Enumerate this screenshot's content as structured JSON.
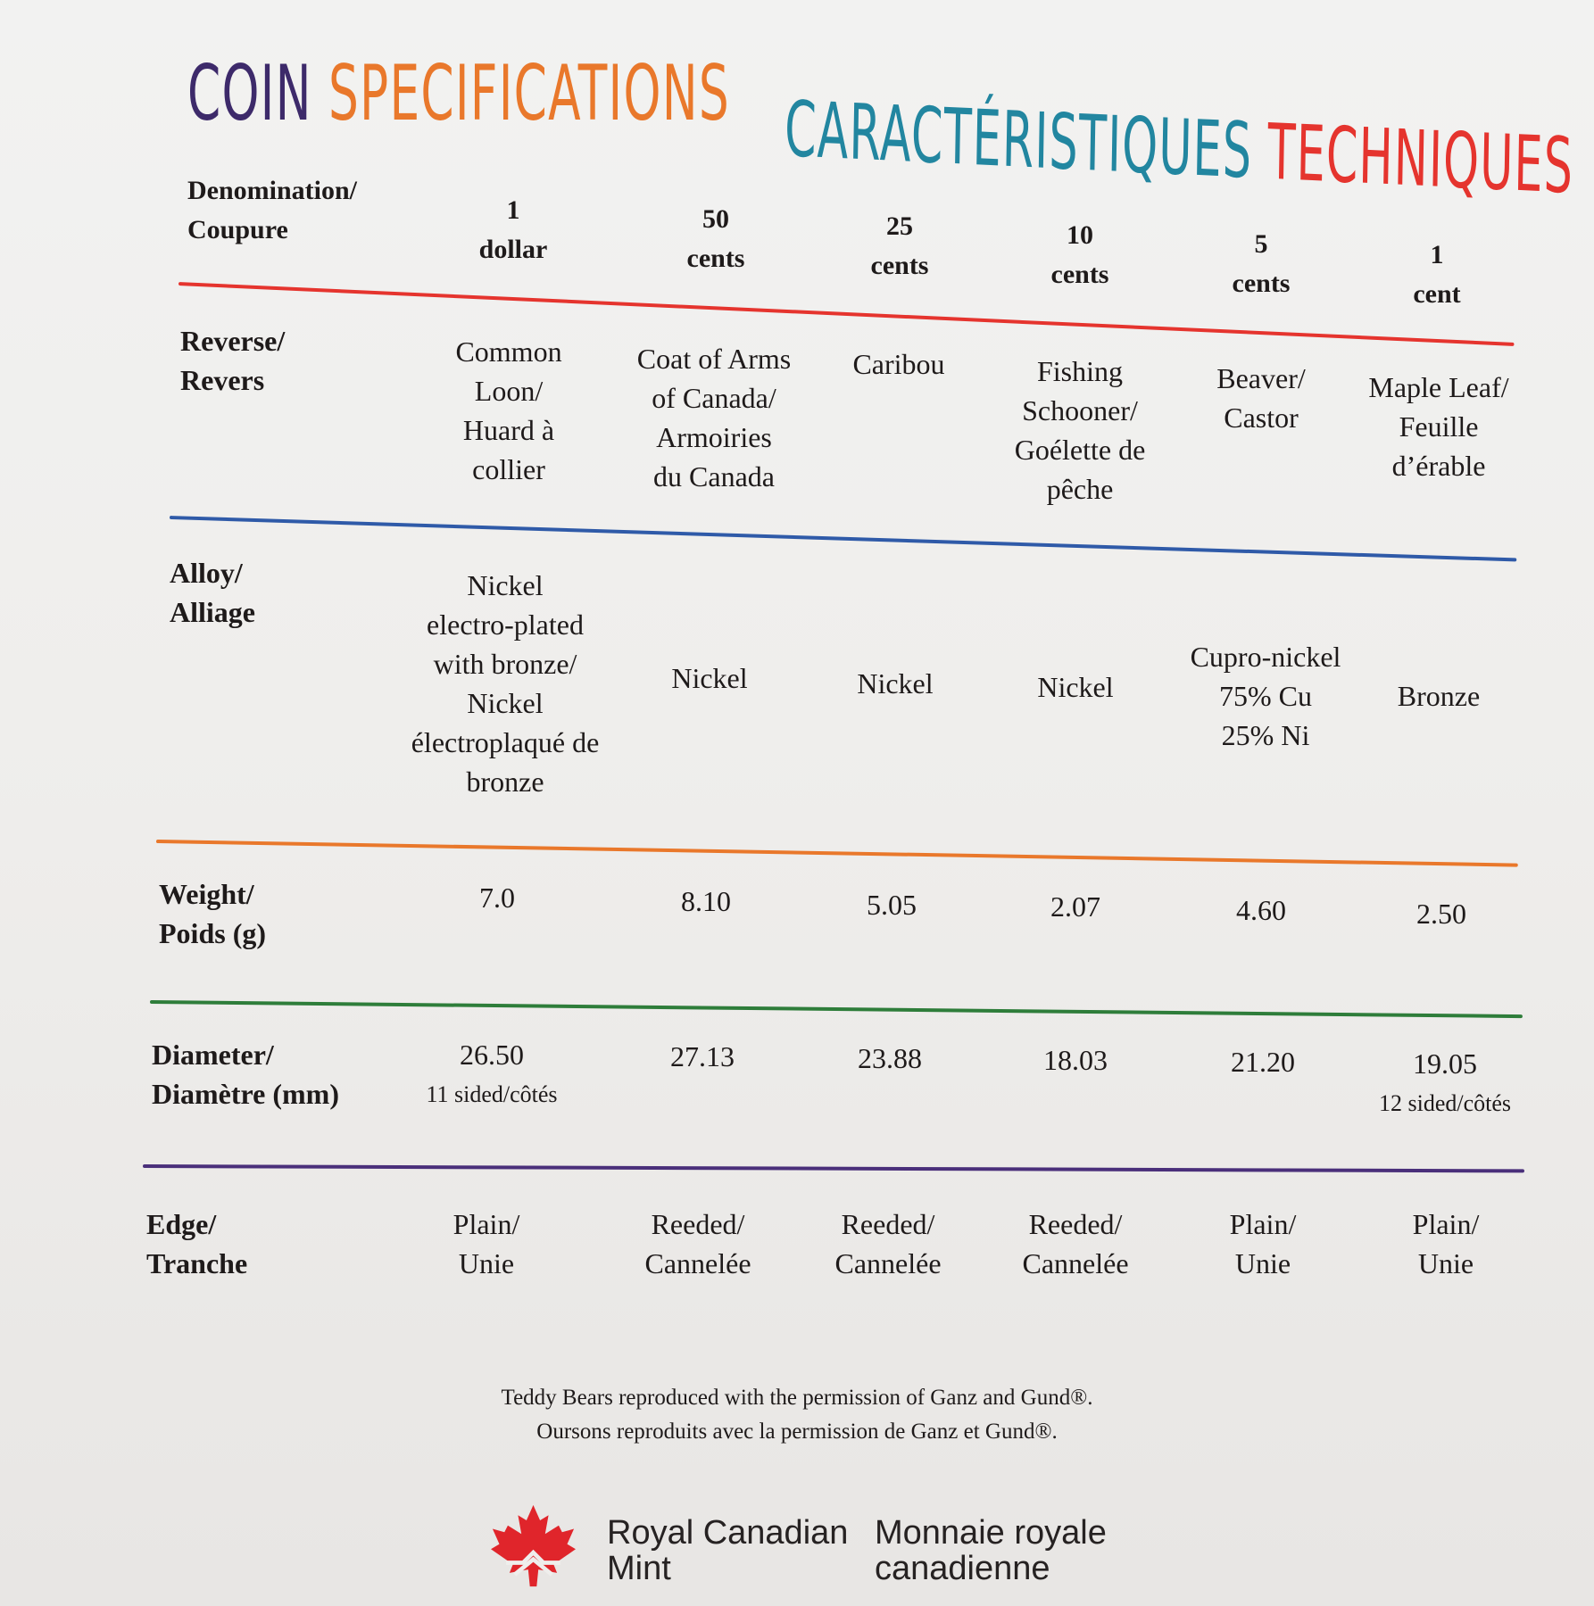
{
  "title": {
    "en_word1": "Coin",
    "en_word2": "Specifications",
    "fr_word1": "Caractéristiques",
    "fr_word2": "Techniques"
  },
  "colors": {
    "purple": "#3d2a6a",
    "orange": "#e9782b",
    "teal": "#2286a0",
    "red": "#e5342e",
    "blue": "#2f5aa8",
    "green": "#2e7d3a",
    "line_purple": "#4a2f7a"
  },
  "table": {
    "denomination": {
      "label": "Denomination/\nCoupure",
      "values": [
        "1\ndollar",
        "50\ncents",
        "25\ncents",
        "10\ncents",
        "5\ncents",
        "1\ncent"
      ]
    },
    "reverse": {
      "label": "Reverse/\nRevers",
      "values": [
        "Common\nLoon/\nHuard à\ncollier",
        "Coat of Arms\nof Canada/\nArmoiries\ndu Canada",
        "Caribou",
        "Fishing\nSchooner/\nGoélette de\npêche",
        "Beaver/\nCastor",
        "Maple Leaf/\nFeuille\nd’érable"
      ]
    },
    "alloy": {
      "label": "Alloy/\nAlliage",
      "values": [
        "Nickel\nelectro-plated\nwith bronze/\nNickel\nélectroplaqué de\nbronze",
        "Nickel",
        "Nickel",
        "Nickel",
        "Cupro-nickel\n75% Cu\n25% Ni",
        "Bronze"
      ]
    },
    "weight": {
      "label": "Weight/\nPoids (g)",
      "values": [
        "7.0",
        "8.10",
        "5.05",
        "2.07",
        "4.60",
        "2.50"
      ]
    },
    "diameter": {
      "label": "Diameter/\nDiamètre (mm)",
      "values": [
        "26.50",
        "27.13",
        "23.88",
        "18.03",
        "21.20",
        "19.05"
      ],
      "notes": [
        "11 sided/côtés",
        "",
        "",
        "",
        "",
        "12 sided/côtés"
      ]
    },
    "edge": {
      "label": "Edge/\nTranche",
      "values": [
        "Plain/\nUnie",
        "Reeded/\nCannelée",
        "Reeded/\nCannelée",
        "Reeded/\nCannelée",
        "Plain/\nUnie",
        "Plain/\nUnie"
      ]
    }
  },
  "footnote": {
    "line1": "Teddy Bears reproduced with the permission of Ganz and Gund®.",
    "line2": "Oursons reproduits avec la permission de Ganz et Gund®."
  },
  "logo": {
    "icon": "maple-leaf-icon",
    "name_en": "Royal Canadian\nMint",
    "name_fr": "Monnaie royale\ncanadienne"
  }
}
